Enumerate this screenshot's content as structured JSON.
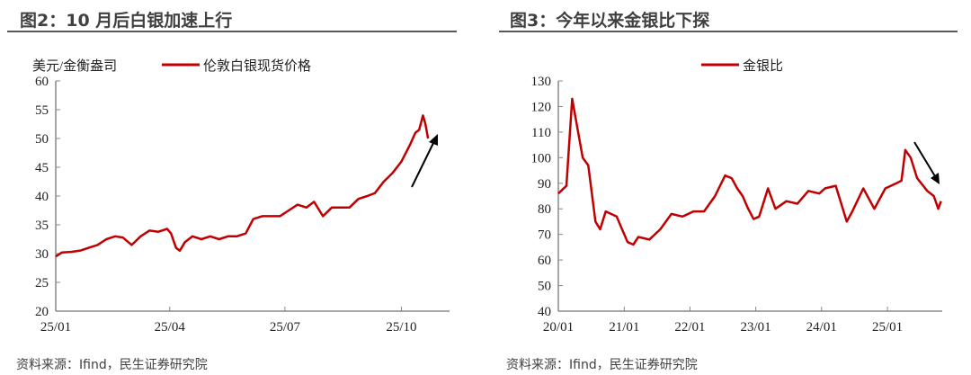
{
  "charts": [
    {
      "title": "图2：10 月后白银加速上行",
      "source": "资料来源：Ifind，民生证券研究院"
    },
    {
      "title": "图3：今年以来金银比下探",
      "source": "资料来源：Ifind，民生证券研究院"
    }
  ],
  "chart_data": [
    {
      "type": "line",
      "title": "图2：10 月后白银加速上行",
      "ylabel": "美元/金衡盎司",
      "ylim": [
        20,
        60
      ],
      "yticks": [
        20,
        25,
        30,
        35,
        40,
        45,
        50,
        55,
        60
      ],
      "xticks": [
        "25/01",
        "25/04",
        "25/07",
        "25/10"
      ],
      "legend": "top",
      "line_color": "#C00000",
      "grid": false,
      "annotations": [
        "upward-arrow"
      ],
      "series": [
        {
          "name": "伦敦白银现货价格",
          "points": [
            [
              "2025-01-01",
              29.5
            ],
            [
              "2025-01-06",
              30.2
            ],
            [
              "2025-01-13",
              30.3
            ],
            [
              "2025-01-20",
              30.5
            ],
            [
              "2025-01-27",
              31
            ],
            [
              "2025-02-03",
              31.5
            ],
            [
              "2025-02-10",
              32.5
            ],
            [
              "2025-02-17",
              33
            ],
            [
              "2025-02-23",
              32.8
            ],
            [
              "2025-03-02",
              31.5
            ],
            [
              "2025-03-09",
              33
            ],
            [
              "2025-03-16",
              34
            ],
            [
              "2025-03-23",
              33.8
            ],
            [
              "2025-03-30",
              34.3
            ],
            [
              "2025-04-02",
              33.5
            ],
            [
              "2025-04-06",
              31
            ],
            [
              "2025-04-09",
              30.5
            ],
            [
              "2025-04-13",
              32
            ],
            [
              "2025-04-19",
              33
            ],
            [
              "2025-04-26",
              32.5
            ],
            [
              "2025-05-03",
              33
            ],
            [
              "2025-05-10",
              32.5
            ],
            [
              "2025-05-17",
              33
            ],
            [
              "2025-05-24",
              33
            ],
            [
              "2025-05-31",
              33.5
            ],
            [
              "2025-06-06",
              36
            ],
            [
              "2025-06-13",
              36.5
            ],
            [
              "2025-06-20",
              36.5
            ],
            [
              "2025-06-27",
              36.5
            ],
            [
              "2025-07-04",
              37.5
            ],
            [
              "2025-07-11",
              38.5
            ],
            [
              "2025-07-18",
              38
            ],
            [
              "2025-07-24",
              39
            ],
            [
              "2025-07-31",
              36.5
            ],
            [
              "2025-08-07",
              38
            ],
            [
              "2025-08-14",
              38
            ],
            [
              "2025-08-21",
              38
            ],
            [
              "2025-08-28",
              39.5
            ],
            [
              "2025-09-04",
              40
            ],
            [
              "2025-09-10",
              40.5
            ],
            [
              "2025-09-17",
              42.5
            ],
            [
              "2025-09-24",
              44
            ],
            [
              "2025-10-01",
              46
            ],
            [
              "2025-10-08",
              49
            ],
            [
              "2025-10-12",
              51
            ],
            [
              "2025-10-15",
              51.5
            ],
            [
              "2025-10-18",
              54
            ],
            [
              "2025-10-20",
              52.5
            ],
            [
              "2025-10-22",
              50
            ]
          ]
        }
      ]
    },
    {
      "type": "line",
      "title": "图3：今年以来金银比下探",
      "ylim": [
        40,
        130
      ],
      "yticks": [
        40,
        50,
        60,
        70,
        80,
        90,
        100,
        110,
        120,
        130
      ],
      "xticks": [
        "20/01",
        "21/01",
        "22/01",
        "23/01",
        "24/01",
        "25/01"
      ],
      "legend": "top",
      "line_color": "#C00000",
      "grid": false,
      "annotations": [
        "downward-arrow"
      ],
      "series": [
        {
          "name": "金银比",
          "points": [
            [
              "2020-01-01",
              86
            ],
            [
              "2020-02-15",
              89
            ],
            [
              "2020-03-18",
              123
            ],
            [
              "2020-04-15",
              112
            ],
            [
              "2020-05-15",
              100
            ],
            [
              "2020-06-15",
              97
            ],
            [
              "2020-07-25",
              75
            ],
            [
              "2020-08-20",
              72
            ],
            [
              "2020-09-20",
              79
            ],
            [
              "2020-10-20",
              78
            ],
            [
              "2020-11-20",
              77
            ],
            [
              "2020-12-20",
              72
            ],
            [
              "2021-01-20",
              67
            ],
            [
              "2021-02-20",
              66
            ],
            [
              "2021-03-20",
              69
            ],
            [
              "2021-05-20",
              68
            ],
            [
              "2021-07-20",
              72
            ],
            [
              "2021-09-20",
              78
            ],
            [
              "2021-11-20",
              77
            ],
            [
              "2022-01-20",
              79
            ],
            [
              "2022-03-20",
              79
            ],
            [
              "2022-05-20",
              85
            ],
            [
              "2022-07-15",
              93
            ],
            [
              "2022-08-20",
              92
            ],
            [
              "2022-09-20",
              88
            ],
            [
              "2022-10-20",
              85
            ],
            [
              "2022-11-20",
              80
            ],
            [
              "2022-12-20",
              76
            ],
            [
              "2023-01-20",
              77
            ],
            [
              "2023-03-10",
              88
            ],
            [
              "2023-04-20",
              80
            ],
            [
              "2023-06-20",
              83
            ],
            [
              "2023-08-20",
              82
            ],
            [
              "2023-10-20",
              87
            ],
            [
              "2023-12-20",
              86
            ],
            [
              "2024-01-20",
              88
            ],
            [
              "2024-03-20",
              89
            ],
            [
              "2024-05-20",
              75
            ],
            [
              "2024-06-20",
              79
            ],
            [
              "2024-08-20",
              88
            ],
            [
              "2024-10-20",
              80
            ],
            [
              "2024-12-20",
              88
            ],
            [
              "2025-02-20",
              90
            ],
            [
              "2025-03-20",
              91
            ],
            [
              "2025-04-10",
              103
            ],
            [
              "2025-05-10",
              100
            ],
            [
              "2025-06-15",
              92
            ],
            [
              "2025-08-10",
              87
            ],
            [
              "2025-09-15",
              85
            ],
            [
              "2025-10-10",
              80
            ],
            [
              "2025-10-25",
              83
            ]
          ]
        }
      ]
    }
  ]
}
